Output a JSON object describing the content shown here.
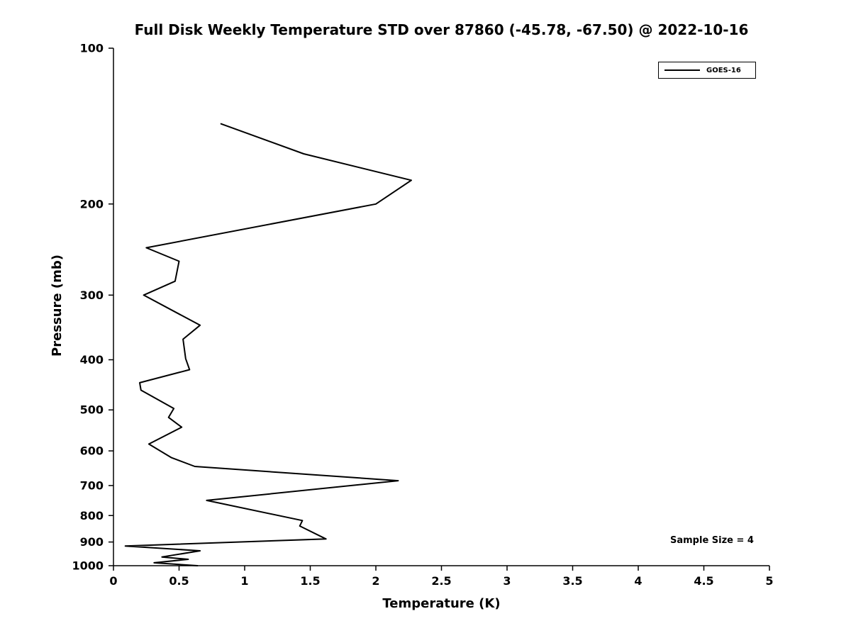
{
  "chart_data": {
    "type": "line",
    "title": "Full Disk Weekly Temperature STD over 87860 (-45.78, -67.50) @ 2022-10-16",
    "xlabel": "Temperature (K)",
    "ylabel": "Pressure (mb)",
    "xlim": [
      0,
      5
    ],
    "ylim": [
      100,
      1000
    ],
    "x_scale": "linear",
    "y_scale": "log",
    "y_axis_inverted": true,
    "grid": false,
    "x_ticks": [
      0,
      0.5,
      1,
      1.5,
      2,
      2.5,
      3,
      3.5,
      4,
      4.5,
      5
    ],
    "x_tick_labels": [
      "0",
      "0.5",
      "1",
      "1.5",
      "2",
      "2.5",
      "3",
      "3.5",
      "4",
      "4.5",
      "5"
    ],
    "y_ticks": [
      100,
      200,
      300,
      400,
      500,
      600,
      700,
      800,
      900,
      1000
    ],
    "y_tick_labels": [
      "100",
      "200",
      "300",
      "400",
      "500",
      "600",
      "700",
      "800",
      "900",
      "1000"
    ],
    "legend": {
      "position": "top-right",
      "entries": [
        {
          "label": "GOES-16",
          "color": "#000000",
          "line_width": 2
        }
      ]
    },
    "annotation": "Sample Size = 4",
    "line_color": "#000000",
    "series": [
      {
        "name": "GOES-16",
        "color": "#000000",
        "points": [
          {
            "pressure_mb": 140,
            "std_k": 0.82
          },
          {
            "pressure_mb": 160,
            "std_k": 1.45
          },
          {
            "pressure_mb": 180,
            "std_k": 2.27
          },
          {
            "pressure_mb": 200,
            "std_k": 2.0
          },
          {
            "pressure_mb": 243,
            "std_k": 0.25
          },
          {
            "pressure_mb": 258,
            "std_k": 0.5
          },
          {
            "pressure_mb": 282,
            "std_k": 0.47
          },
          {
            "pressure_mb": 300,
            "std_k": 0.23
          },
          {
            "pressure_mb": 343,
            "std_k": 0.66
          },
          {
            "pressure_mb": 365,
            "std_k": 0.53
          },
          {
            "pressure_mb": 398,
            "std_k": 0.55
          },
          {
            "pressure_mb": 418,
            "std_k": 0.58
          },
          {
            "pressure_mb": 443,
            "std_k": 0.2
          },
          {
            "pressure_mb": 458,
            "std_k": 0.21
          },
          {
            "pressure_mb": 497,
            "std_k": 0.46
          },
          {
            "pressure_mb": 517,
            "std_k": 0.42
          },
          {
            "pressure_mb": 540,
            "std_k": 0.52
          },
          {
            "pressure_mb": 582,
            "std_k": 0.27
          },
          {
            "pressure_mb": 618,
            "std_k": 0.44
          },
          {
            "pressure_mb": 643,
            "std_k": 0.62
          },
          {
            "pressure_mb": 685,
            "std_k": 2.17
          },
          {
            "pressure_mb": 748,
            "std_k": 0.71
          },
          {
            "pressure_mb": 818,
            "std_k": 1.44
          },
          {
            "pressure_mb": 838,
            "std_k": 1.42
          },
          {
            "pressure_mb": 888,
            "std_k": 1.62
          },
          {
            "pressure_mb": 916,
            "std_k": 0.09
          },
          {
            "pressure_mb": 936,
            "std_k": 0.66
          },
          {
            "pressure_mb": 962,
            "std_k": 0.37
          },
          {
            "pressure_mb": 972,
            "std_k": 0.57
          },
          {
            "pressure_mb": 987,
            "std_k": 0.31
          },
          {
            "pressure_mb": 1000,
            "std_k": 0.64
          }
        ]
      }
    ]
  }
}
